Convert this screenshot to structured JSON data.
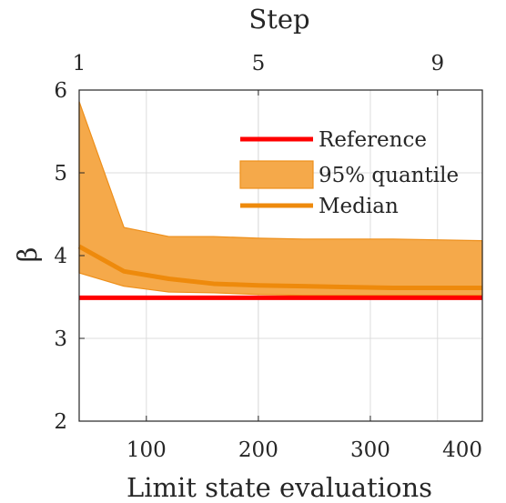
{
  "chart_data": {
    "type": "line",
    "xlabel": "Limit state evaluations",
    "ylabel": "β",
    "top_xlabel": "Step",
    "xlim": [
      40,
      400
    ],
    "ylim": [
      2,
      6
    ],
    "x_ticks": [
      100,
      200,
      300,
      400
    ],
    "y_ticks": [
      2,
      3,
      4,
      5,
      6
    ],
    "top_ticks": [
      {
        "label": "1",
        "x": 40
      },
      {
        "label": "5",
        "x": 200
      },
      {
        "label": "9",
        "x": 360
      }
    ],
    "grid": true,
    "legend_position": "top-right",
    "x": [
      40,
      80,
      120,
      160,
      200,
      240,
      280,
      320,
      360,
      400
    ],
    "series": [
      {
        "name": "Reference",
        "kind": "line",
        "color": "#ff0000",
        "values": [
          3.49,
          3.49,
          3.49,
          3.49,
          3.49,
          3.49,
          3.49,
          3.49,
          3.49,
          3.49
        ]
      },
      {
        "name": "95% quantile",
        "kind": "band",
        "color": "#f5a94a",
        "edge_color": "#ee8f1a",
        "lower": [
          3.79,
          3.63,
          3.56,
          3.55,
          3.53,
          3.52,
          3.52,
          3.52,
          3.52,
          3.52
        ],
        "upper": [
          5.86,
          4.34,
          4.23,
          4.23,
          4.21,
          4.2,
          4.2,
          4.2,
          4.19,
          4.18
        ]
      },
      {
        "name": "Median",
        "kind": "line",
        "color": "#ee8a0c",
        "values": [
          4.11,
          3.81,
          3.72,
          3.66,
          3.64,
          3.63,
          3.62,
          3.61,
          3.61,
          3.61
        ]
      }
    ]
  }
}
